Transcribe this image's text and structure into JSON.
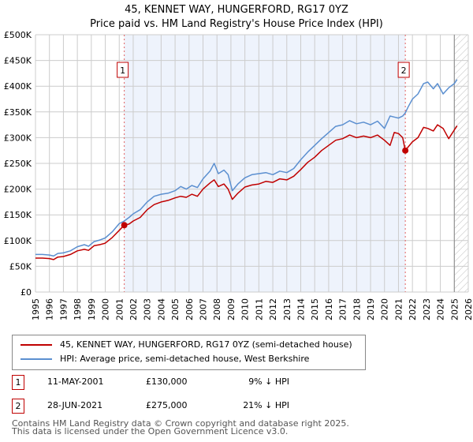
{
  "title": "45, KENNET WAY, HUNGERFORD, RG17 0YZ",
  "subtitle": "Price paid vs. HM Land Registry's House Price Index (HPI)",
  "colors": {
    "price_line": "#c00000",
    "hpi_line": "#5b8fd0",
    "shade": "#eef3fc",
    "grid": "#cccccc",
    "marker_border": "#c00000"
  },
  "legend": {
    "items": [
      {
        "label": "45, KENNET WAY, HUNGERFORD, RG17 0YZ (semi-detached house)",
        "color": "#c00000"
      },
      {
        "label": "HPI: Average price, semi-detached house, West Berkshire",
        "color": "#5b8fd0"
      }
    ]
  },
  "transactions": [
    {
      "id": "1",
      "date": "11-MAY-2001",
      "price": "£130,000",
      "hpi_diff": "9% ↓ HPI"
    },
    {
      "id": "2",
      "date": "28-JUN-2021",
      "price": "£275,000",
      "hpi_diff": "21% ↓ HPI"
    }
  ],
  "footer": {
    "line1": "Contains HM Land Registry data © Crown copyright and database right 2025.",
    "line2": "This data is licensed under the Open Government Licence v3.0."
  },
  "chart_data": {
    "type": "line",
    "title": "45, KENNET WAY, HUNGERFORD, RG17 0YZ",
    "subtitle": "Price paid vs. HM Land Registry's House Price Index (HPI)",
    "xlabel": "",
    "ylabel": "",
    "xlim": [
      1995,
      2026
    ],
    "ylim": [
      0,
      500000
    ],
    "grid": true,
    "legend_position": "bottom",
    "x_ticks": [
      "1995",
      "1996",
      "1997",
      "1998",
      "1999",
      "2000",
      "2001",
      "2002",
      "2003",
      "2004",
      "2005",
      "2006",
      "2007",
      "2008",
      "2009",
      "2010",
      "2011",
      "2012",
      "2013",
      "2014",
      "2015",
      "2016",
      "2017",
      "2018",
      "2019",
      "2020",
      "2021",
      "2022",
      "2023",
      "2024",
      "2025",
      "2026"
    ],
    "y_ticks": [
      {
        "value": 0,
        "label": "£0"
      },
      {
        "value": 50000,
        "label": "£50K"
      },
      {
        "value": 100000,
        "label": "£100K"
      },
      {
        "value": 150000,
        "label": "£150K"
      },
      {
        "value": 200000,
        "label": "£200K"
      },
      {
        "value": 250000,
        "label": "£250K"
      },
      {
        "value": 300000,
        "label": "£300K"
      },
      {
        "value": 350000,
        "label": "£350K"
      },
      {
        "value": 400000,
        "label": "£400K"
      },
      {
        "value": 450000,
        "label": "£450K"
      },
      {
        "value": 500000,
        "label": "£500K"
      }
    ],
    "shaded_region": {
      "from": 2001.36,
      "to": 2021.49
    },
    "future_hatch_from": 2025.0,
    "annotations": [
      {
        "label": "1",
        "x": 2001.36,
        "value": 130000
      },
      {
        "label": "2",
        "x": 2021.49,
        "value": 275000
      }
    ],
    "series": [
      {
        "name": "45, KENNET WAY, HUNGERFORD, RG17 0YZ (semi-detached house)",
        "color": "#c00000",
        "x": [
          1995,
          1995.5,
          1996,
          1996.3,
          1996.6,
          1997,
          1997.5,
          1998,
          1998.5,
          1998.8,
          1999.2,
          1999.6,
          2000,
          2000.5,
          2001,
          2001.36,
          2001.7,
          2002,
          2002.5,
          2003,
          2003.5,
          2004,
          2004.5,
          2005,
          2005.4,
          2005.8,
          2006.2,
          2006.6,
          2007,
          2007.5,
          2007.8,
          2008.1,
          2008.5,
          2008.8,
          2009.1,
          2009.5,
          2010,
          2010.5,
          2011,
          2011.5,
          2012,
          2012.5,
          2013,
          2013.5,
          2014,
          2014.5,
          2015,
          2015.5,
          2016,
          2016.5,
          2017,
          2017.5,
          2018,
          2018.5,
          2019,
          2019.5,
          2020,
          2020.4,
          2020.7,
          2021,
          2021.3,
          2021.49,
          2021.7,
          2022,
          2022.4,
          2022.8,
          2023.1,
          2023.5,
          2023.8,
          2024.2,
          2024.6,
          2025,
          2025.2
        ],
        "values": [
          66000,
          66000,
          65000,
          63000,
          68000,
          69000,
          73000,
          80000,
          83000,
          81000,
          90000,
          92000,
          95000,
          106000,
          120000,
          130000,
          132000,
          138000,
          145000,
          160000,
          170000,
          175000,
          178000,
          183000,
          186000,
          184000,
          190000,
          186000,
          200000,
          212000,
          218000,
          205000,
          210000,
          200000,
          180000,
          192000,
          204000,
          208000,
          210000,
          215000,
          213000,
          220000,
          218000,
          225000,
          238000,
          252000,
          262000,
          275000,
          285000,
          295000,
          298000,
          305000,
          300000,
          303000,
          300000,
          305000,
          295000,
          285000,
          310000,
          308000,
          300000,
          275000,
          282000,
          292000,
          300000,
          320000,
          318000,
          313000,
          325000,
          318000,
          298000,
          315000,
          323000
        ]
      },
      {
        "name": "HPI: Average price, semi-detached house, West Berkshire",
        "color": "#5b8fd0",
        "x": [
          1995,
          1995.5,
          1996,
          1996.3,
          1996.6,
          1997,
          1997.5,
          1998,
          1998.5,
          1998.8,
          1999.2,
          1999.6,
          2000,
          2000.5,
          2001,
          2001.36,
          2001.7,
          2002,
          2002.5,
          2003,
          2003.5,
          2004,
          2004.5,
          2005,
          2005.4,
          2005.8,
          2006.2,
          2006.6,
          2007,
          2007.5,
          2007.8,
          2008.1,
          2008.5,
          2008.8,
          2009.1,
          2009.5,
          2010,
          2010.5,
          2011,
          2011.5,
          2012,
          2012.5,
          2013,
          2013.5,
          2014,
          2014.5,
          2015,
          2015.5,
          2016,
          2016.5,
          2017,
          2017.5,
          2018,
          2018.5,
          2019,
          2019.5,
          2020,
          2020.4,
          2020.7,
          2021,
          2021.3,
          2021.49,
          2021.7,
          2022,
          2022.4,
          2022.8,
          2023.1,
          2023.5,
          2023.8,
          2024.2,
          2024.6,
          2025,
          2025.2
        ],
        "values": [
          73000,
          73000,
          72000,
          70000,
          75000,
          76000,
          80000,
          88000,
          92000,
          89000,
          98000,
          101000,
          105000,
          117000,
          133000,
          138000,
          145000,
          152000,
          160000,
          175000,
          186000,
          190000,
          192000,
          197000,
          205000,
          200000,
          207000,
          203000,
          220000,
          235000,
          250000,
          230000,
          237000,
          228000,
          197000,
          210000,
          222000,
          228000,
          230000,
          232000,
          228000,
          235000,
          232000,
          240000,
          257000,
          272000,
          285000,
          298000,
          310000,
          322000,
          325000,
          333000,
          327000,
          330000,
          325000,
          332000,
          318000,
          342000,
          340000,
          338000,
          342000,
          348000,
          360000,
          375000,
          385000,
          405000,
          408000,
          395000,
          405000,
          385000,
          397000,
          405000,
          413000
        ]
      }
    ]
  }
}
